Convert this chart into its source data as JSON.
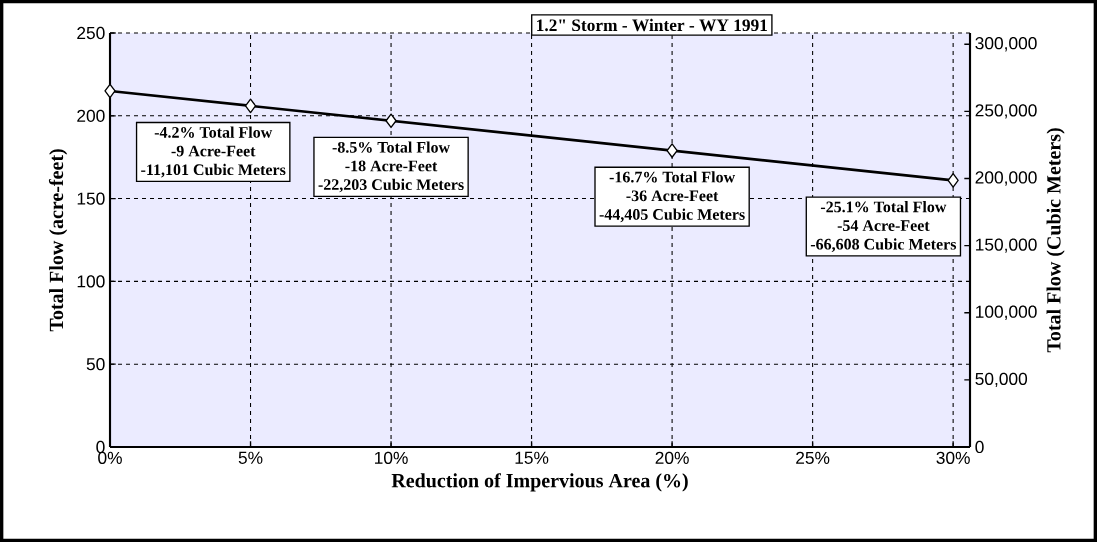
{
  "chart_data": {
    "type": "line",
    "title": "1.2\" Storm - Winter - WY 1991",
    "xlabel": "Reduction of Impervious Area (%)",
    "ylabel": "Total Flow (acre-feet)",
    "y2label": "Total Flow  (Cubic Meters)",
    "x": [
      0,
      5,
      10,
      20,
      30
    ],
    "series": [
      {
        "color": "#000000",
        "values": [
          215,
          206,
          197,
          179,
          161
        ]
      }
    ],
    "xlim": [
      0,
      30.6
    ],
    "ylim": [
      0,
      250
    ],
    "xticks": [
      {
        "value": 0,
        "label": "0%"
      },
      {
        "value": 5,
        "label": "5%"
      },
      {
        "value": 10,
        "label": "10%"
      },
      {
        "value": 15,
        "label": "15%"
      },
      {
        "value": 20,
        "label": "20%"
      },
      {
        "value": 25,
        "label": "25%"
      },
      {
        "value": 30,
        "label": "30%"
      }
    ],
    "yticks": [
      0,
      50,
      100,
      150,
      200,
      250
    ],
    "y2lim": [
      0,
      308370
    ],
    "y2ticks": [
      {
        "value": 0,
        "label": "0"
      },
      {
        "value": 50000,
        "label": "50,000"
      },
      {
        "value": 100000,
        "label": "100,000"
      },
      {
        "value": 150000,
        "label": "150,000"
      },
      {
        "value": 200000,
        "label": "200,000"
      },
      {
        "value": 250000,
        "label": "250,000"
      },
      {
        "value": 300000,
        "label": "300,000"
      }
    ],
    "grid": true,
    "marker": "diamond",
    "line_style": "solid",
    "annotations": [
      "-4.2% Total Flow",
      "-9 Acre-Feet",
      "-11,101 Cubic Meters",
      "-8.5% Total Flow",
      "-18 Acre-Feet",
      "-22,203 Cubic Meters",
      "-16.7% Total Flow",
      "-36 Acre-Feet",
      "-44,405 Cubic Meters",
      "-25.1% Total Flow",
      "-54 Acre-Feet",
      "-66,608 Cubic Meters"
    ]
  }
}
